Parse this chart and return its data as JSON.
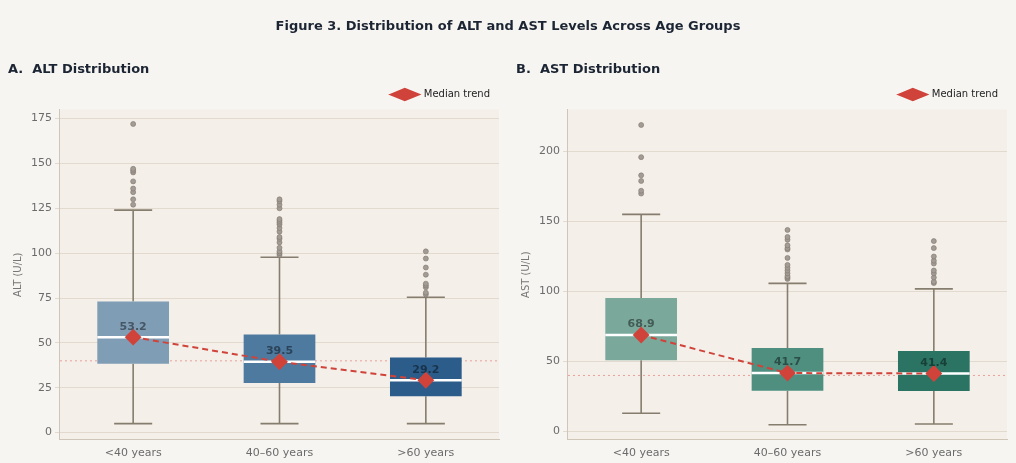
{
  "chart_data": [
    {
      "type": "box",
      "title": "A.  ALT Distribution",
      "ylabel": "ALT (U/L)",
      "annotations": [
        "Figure 3.  Distribution of ALT and AST Levels Across Age Groups"
      ],
      "categories": [
        "<40 years",
        "40–60 years",
        ">60 years"
      ],
      "colors": [
        "#7f9db5",
        "#4f7aa0",
        "#2c5d8a"
      ],
      "boxes": [
        {
          "low": 5,
          "q1": 38.4,
          "median": 53.2,
          "q3": 73,
          "high": 124,
          "outliers": [
            127,
            130,
            134,
            136,
            140,
            145,
            146,
            147,
            172
          ]
        },
        {
          "low": 5,
          "q1": 27.6,
          "median": 39.5,
          "q3": 54.7,
          "high": 97.7,
          "outliers": [
            99,
            100,
            101,
            103,
            106,
            108,
            109,
            112,
            114,
            116,
            117,
            118,
            119,
            125,
            127,
            129,
            130
          ]
        },
        {
          "low": 5,
          "q1": 20.2,
          "median": 29.2,
          "q3": 41.8,
          "high": 75.4,
          "outliers": [
            77,
            78,
            81,
            82,
            83,
            88,
            92,
            97,
            101
          ]
        }
      ],
      "series": [
        {
          "type": "line",
          "name": "Median trend",
          "color": "#d0433a",
          "values": [
            53.2,
            39.5,
            29.2
          ],
          "value_labels": [
            "53.2",
            "39.5",
            "29.2"
          ],
          "marker": "diamond",
          "line_style": "dashed"
        }
      ],
      "ref_lines": [
        {
          "axis": "y",
          "value": 40,
          "color": "#e8a09a",
          "line_style": "dotted"
        }
      ],
      "ylim": [
        -4,
        180
      ],
      "yticks": [
        0,
        25,
        50,
        75,
        100,
        125,
        150,
        175
      ],
      "grid": "y",
      "legend": "top right"
    },
    {
      "type": "box",
      "title": "B.  AST Distribution",
      "ylabel": "AST (U/L)",
      "categories": [
        "<40 years",
        "40–60 years",
        ">60 years"
      ],
      "colors": [
        "#7aa89b",
        "#4e8f80",
        "#2b7464"
      ],
      "boxes": [
        {
          "low": 13,
          "q1": 50.8,
          "median": 68.9,
          "q3": 95.3,
          "high": 155.1,
          "outliers": [
            170,
            172,
            179,
            183,
            196,
            219
          ]
        },
        {
          "low": 4.8,
          "q1": 29,
          "median": 41.7,
          "q3": 59.6,
          "high": 105.8,
          "outliers": [
            109,
            110,
            111,
            113,
            115,
            117,
            119,
            124,
            130,
            131,
            133,
            137,
            139,
            144
          ]
        },
        {
          "low": 5.3,
          "q1": 28.8,
          "median": 41.4,
          "q3": 57.4,
          "high": 101.9,
          "outliers": [
            106,
            107,
            110,
            113,
            115,
            120,
            122,
            125,
            131,
            136
          ]
        }
      ],
      "series": [
        {
          "type": "line",
          "name": "Median trend",
          "color": "#d0433a",
          "values": [
            68.9,
            41.7,
            41.4
          ],
          "value_labels": [
            "68.9",
            "41.7",
            "41.4"
          ],
          "marker": "diamond",
          "line_style": "dashed"
        }
      ],
      "ref_lines": [
        {
          "axis": "y",
          "value": 40,
          "color": "#e8a09a",
          "line_style": "dotted"
        }
      ],
      "ylim": [
        -6,
        230
      ],
      "yticks": [
        0,
        50,
        100,
        150,
        200
      ],
      "grid": "y",
      "legend": "top right"
    }
  ]
}
